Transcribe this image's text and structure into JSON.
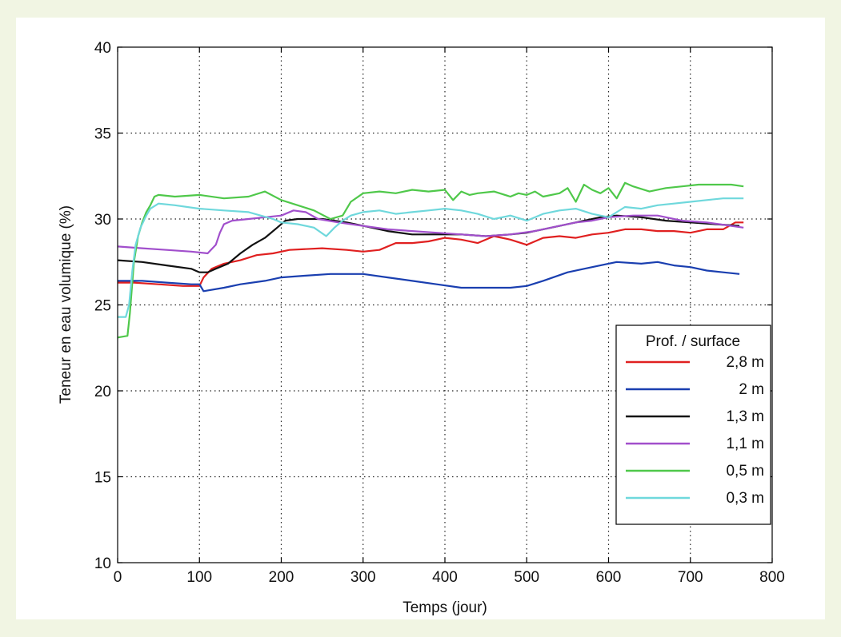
{
  "chart_data": {
    "type": "line",
    "title": "",
    "xlabel": "Temps (jour)",
    "ylabel": "Teneur en eau volumique (%)",
    "xlim": [
      0,
      800
    ],
    "ylim": [
      10,
      40
    ],
    "xticks": [
      0,
      100,
      200,
      300,
      400,
      500,
      600,
      700,
      800
    ],
    "yticks": [
      10,
      15,
      20,
      25,
      30,
      35,
      40
    ],
    "grid": true,
    "legend": {
      "title": "Prof. / surface",
      "position": "bottom-right"
    },
    "series": [
      {
        "name": "2,8 m",
        "color": "#e02020",
        "x": [
          0,
          20,
          50,
          80,
          100,
          105,
          115,
          130,
          150,
          170,
          190,
          210,
          250,
          280,
          300,
          320,
          340,
          360,
          380,
          400,
          420,
          440,
          460,
          480,
          500,
          510,
          520,
          540,
          560,
          580,
          600,
          620,
          640,
          660,
          680,
          700,
          720,
          740,
          755,
          765
        ],
        "y": [
          26.3,
          26.3,
          26.2,
          26.1,
          26.1,
          26.6,
          27.1,
          27.4,
          27.6,
          27.9,
          28.0,
          28.2,
          28.3,
          28.2,
          28.1,
          28.2,
          28.6,
          28.6,
          28.7,
          28.9,
          28.8,
          28.6,
          29.0,
          28.8,
          28.5,
          28.7,
          28.9,
          29.0,
          28.9,
          29.1,
          29.2,
          29.4,
          29.4,
          29.3,
          29.3,
          29.2,
          29.4,
          29.4,
          29.8,
          29.8
        ]
      },
      {
        "name": "2 m",
        "color": "#1a3fb0",
        "x": [
          0,
          30,
          60,
          90,
          100,
          105,
          130,
          150,
          180,
          200,
          230,
          260,
          280,
          300,
          330,
          360,
          390,
          420,
          450,
          480,
          500,
          520,
          550,
          580,
          610,
          640,
          660,
          680,
          700,
          720,
          740,
          760
        ],
        "y": [
          26.4,
          26.4,
          26.3,
          26.2,
          26.2,
          25.8,
          26.0,
          26.2,
          26.4,
          26.6,
          26.7,
          26.8,
          26.8,
          26.8,
          26.6,
          26.4,
          26.2,
          26.0,
          26.0,
          26.0,
          26.1,
          26.4,
          26.9,
          27.2,
          27.5,
          27.4,
          27.5,
          27.3,
          27.2,
          27.0,
          26.9,
          26.8
        ]
      },
      {
        "name": "1,3 m",
        "color": "#111111",
        "x": [
          0,
          30,
          60,
          90,
          100,
          110,
          120,
          135,
          150,
          165,
          180,
          195,
          205,
          220,
          250,
          280,
          300,
          330,
          360,
          390,
          420,
          450,
          480,
          500,
          530,
          560,
          590,
          610,
          640,
          670,
          700,
          730,
          760
        ],
        "y": [
          27.6,
          27.5,
          27.3,
          27.1,
          26.9,
          26.9,
          27.1,
          27.4,
          28.0,
          28.5,
          28.9,
          29.5,
          29.9,
          30.0,
          30.0,
          29.8,
          29.6,
          29.3,
          29.1,
          29.1,
          29.1,
          29.0,
          29.1,
          29.2,
          29.5,
          29.8,
          30.1,
          30.2,
          30.1,
          29.9,
          29.8,
          29.7,
          29.6
        ]
      },
      {
        "name": "1,1 m",
        "color": "#a14fcc",
        "x": [
          0,
          30,
          60,
          90,
          110,
          120,
          125,
          130,
          140,
          160,
          180,
          200,
          215,
          230,
          245,
          270,
          300,
          330,
          360,
          390,
          420,
          450,
          480,
          510,
          540,
          560,
          580,
          600,
          630,
          660,
          690,
          720,
          750,
          765
        ],
        "y": [
          28.4,
          28.3,
          28.2,
          28.1,
          28.0,
          28.5,
          29.2,
          29.7,
          29.9,
          30.0,
          30.1,
          30.2,
          30.5,
          30.4,
          30.0,
          29.8,
          29.6,
          29.4,
          29.3,
          29.2,
          29.1,
          29.0,
          29.1,
          29.3,
          29.6,
          29.8,
          29.9,
          30.1,
          30.2,
          30.2,
          29.9,
          29.8,
          29.6,
          29.5
        ]
      },
      {
        "name": "0,5 m",
        "color": "#4fc84a",
        "x": [
          0,
          12,
          15,
          20,
          25,
          30,
          35,
          40,
          45,
          50,
          70,
          100,
          130,
          160,
          180,
          200,
          220,
          240,
          260,
          275,
          285,
          300,
          320,
          340,
          360,
          380,
          400,
          410,
          420,
          430,
          440,
          460,
          480,
          490,
          500,
          510,
          520,
          540,
          550,
          560,
          570,
          580,
          590,
          600,
          610,
          620,
          630,
          650,
          670,
          690,
          710,
          730,
          750,
          765
        ],
        "y": [
          23.1,
          23.2,
          24.5,
          27.5,
          29.0,
          29.8,
          30.4,
          30.8,
          31.3,
          31.4,
          31.3,
          31.4,
          31.2,
          31.3,
          31.6,
          31.1,
          30.8,
          30.5,
          30.0,
          30.2,
          31.0,
          31.5,
          31.6,
          31.5,
          31.7,
          31.6,
          31.7,
          31.1,
          31.6,
          31.4,
          31.5,
          31.6,
          31.3,
          31.5,
          31.4,
          31.6,
          31.3,
          31.5,
          31.8,
          31.0,
          32.0,
          31.7,
          31.5,
          31.8,
          31.2,
          32.1,
          31.9,
          31.6,
          31.8,
          31.9,
          32.0,
          32.0,
          32.0,
          31.9
        ]
      },
      {
        "name": "0,3 m",
        "color": "#6fd8dc",
        "x": [
          0,
          10,
          14,
          18,
          22,
          28,
          35,
          40,
          50,
          70,
          100,
          130,
          160,
          190,
          200,
          220,
          240,
          255,
          265,
          275,
          285,
          300,
          320,
          340,
          360,
          380,
          400,
          420,
          440,
          460,
          480,
          500,
          520,
          540,
          560,
          580,
          600,
          620,
          640,
          660,
          680,
          700,
          720,
          740,
          760,
          765
        ],
        "y": [
          24.3,
          24.3,
          25.0,
          27.0,
          28.5,
          29.5,
          30.2,
          30.6,
          30.9,
          30.8,
          30.6,
          30.5,
          30.4,
          30.0,
          29.8,
          29.7,
          29.5,
          29.0,
          29.5,
          29.9,
          30.2,
          30.4,
          30.5,
          30.3,
          30.4,
          30.5,
          30.6,
          30.5,
          30.3,
          30.0,
          30.2,
          29.9,
          30.3,
          30.5,
          30.6,
          30.3,
          30.1,
          30.7,
          30.6,
          30.8,
          30.9,
          31.0,
          31.1,
          31.2,
          31.2,
          31.2
        ]
      }
    ]
  }
}
